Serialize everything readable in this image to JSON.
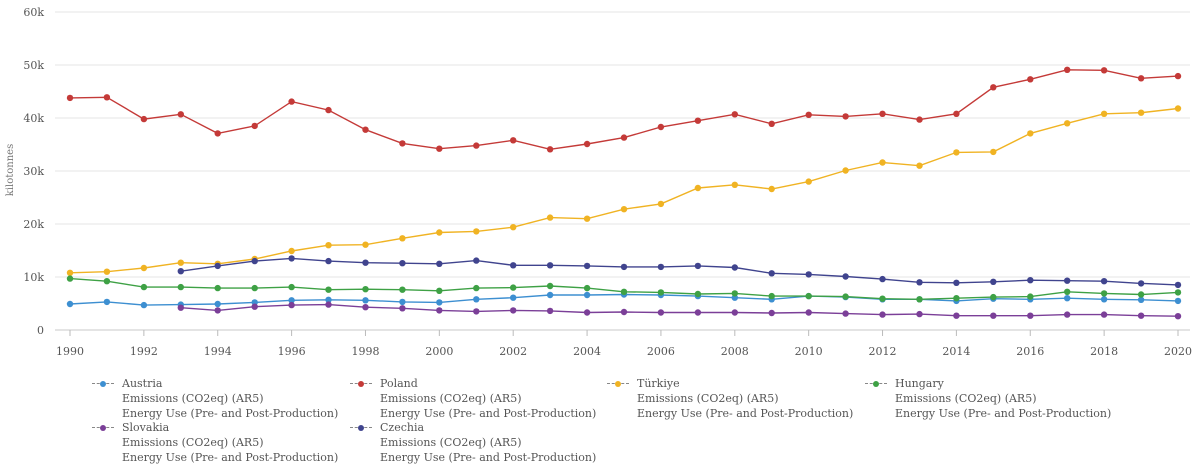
{
  "chart_data": {
    "type": "line",
    "title": "",
    "xlabel": "",
    "ylabel": "kilotonnes",
    "ylim": [
      0,
      60000
    ],
    "yticks": [
      0,
      10000,
      20000,
      30000,
      40000,
      50000,
      60000
    ],
    "ytick_labels": [
      "0",
      "10k",
      "20k",
      "30k",
      "40k",
      "50k",
      "60k"
    ],
    "xlim": [
      1990,
      2020
    ],
    "xticks": [
      1990,
      1992,
      1994,
      1996,
      1998,
      2000,
      2002,
      2004,
      2006,
      2008,
      2010,
      2012,
      2014,
      2016,
      2018,
      2020
    ],
    "grid": "horizontal",
    "legend_position": "bottom",
    "x": [
      1990,
      1991,
      1992,
      1993,
      1994,
      1995,
      1996,
      1997,
      1998,
      1999,
      2000,
      2001,
      2002,
      2003,
      2004,
      2005,
      2006,
      2007,
      2008,
      2009,
      2010,
      2011,
      2012,
      2013,
      2014,
      2015,
      2016,
      2017,
      2018,
      2019,
      2020
    ],
    "series": [
      {
        "name": "Austria",
        "color": "#3d8fd1",
        "lines": [
          "Emissions (CO2eq) (AR5)",
          "Energy Use (Pre- and Post-Production)"
        ],
        "values": [
          4900,
          5300,
          4700,
          4800,
          4900,
          5200,
          5600,
          5700,
          5600,
          5300,
          5200,
          5800,
          6100,
          6600,
          6600,
          6700,
          6600,
          6400,
          6100,
          5800,
          6400,
          6200,
          5800,
          5800,
          5500,
          5900,
          5800,
          6000,
          5800,
          5700,
          5500
        ]
      },
      {
        "name": "Poland",
        "color": "#c43a38",
        "lines": [
          "Emissions (CO2eq) (AR5)",
          "Energy Use (Pre- and Post-Production)"
        ],
        "values": [
          43800,
          43900,
          39800,
          40700,
          37100,
          38500,
          43100,
          41500,
          37800,
          35200,
          34200,
          34800,
          35800,
          34100,
          35100,
          36300,
          38300,
          39500,
          40700,
          38900,
          40600,
          40300,
          40800,
          39700,
          40800,
          45800,
          47300,
          49100,
          49000,
          47500,
          47900
        ]
      },
      {
        "name": "Türkiye",
        "color": "#f0b323",
        "lines": [
          "Emissions (CO2eq) (AR5)",
          "Energy Use (Pre- and Post-Production)"
        ],
        "values": [
          10800,
          11000,
          11700,
          12700,
          12500,
          13400,
          14900,
          16000,
          16100,
          17300,
          18400,
          18600,
          19400,
          21200,
          21000,
          22800,
          23800,
          26800,
          27400,
          26600,
          28000,
          30100,
          31600,
          31000,
          33500,
          33600,
          37100,
          39000,
          40800,
          41000,
          41800
        ]
      },
      {
        "name": "Hungary",
        "color": "#3ea145",
        "lines": [
          "Emissions (CO2eq) (AR5)",
          "Energy Use (Pre- and Post-Production)"
        ],
        "values": [
          9700,
          9200,
          8100,
          8100,
          7900,
          7900,
          8100,
          7600,
          7700,
          7600,
          7400,
          7900,
          8000,
          8300,
          7900,
          7200,
          7100,
          6800,
          6900,
          6400,
          6400,
          6300,
          5900,
          5800,
          6000,
          6200,
          6300,
          7200,
          6900,
          6700,
          7100
        ]
      },
      {
        "name": "Slovakia",
        "color": "#7b3f98",
        "lines": [
          "Emissions (CO2eq) (AR5)",
          "Energy Use (Pre- and Post-Production)"
        ],
        "values": [
          null,
          null,
          null,
          4200,
          3700,
          4400,
          4700,
          4800,
          4300,
          4100,
          3700,
          3500,
          3700,
          3600,
          3300,
          3400,
          3300,
          3300,
          3300,
          3200,
          3300,
          3100,
          2900,
          3000,
          2700,
          2700,
          2700,
          2900,
          2900,
          2700,
          2600
        ]
      },
      {
        "name": "Czechia",
        "color": "#40448e",
        "lines": [
          "Emissions (CO2eq) (AR5)",
          "Energy Use (Pre- and Post-Production)"
        ],
        "values": [
          null,
          null,
          null,
          11100,
          12100,
          13000,
          13500,
          13000,
          12700,
          12600,
          12500,
          13100,
          12200,
          12200,
          12100,
          11900,
          11900,
          12100,
          11800,
          10700,
          10500,
          10100,
          9600,
          9000,
          8900,
          9100,
          9400,
          9300,
          9200,
          8800,
          8500
        ]
      }
    ]
  }
}
